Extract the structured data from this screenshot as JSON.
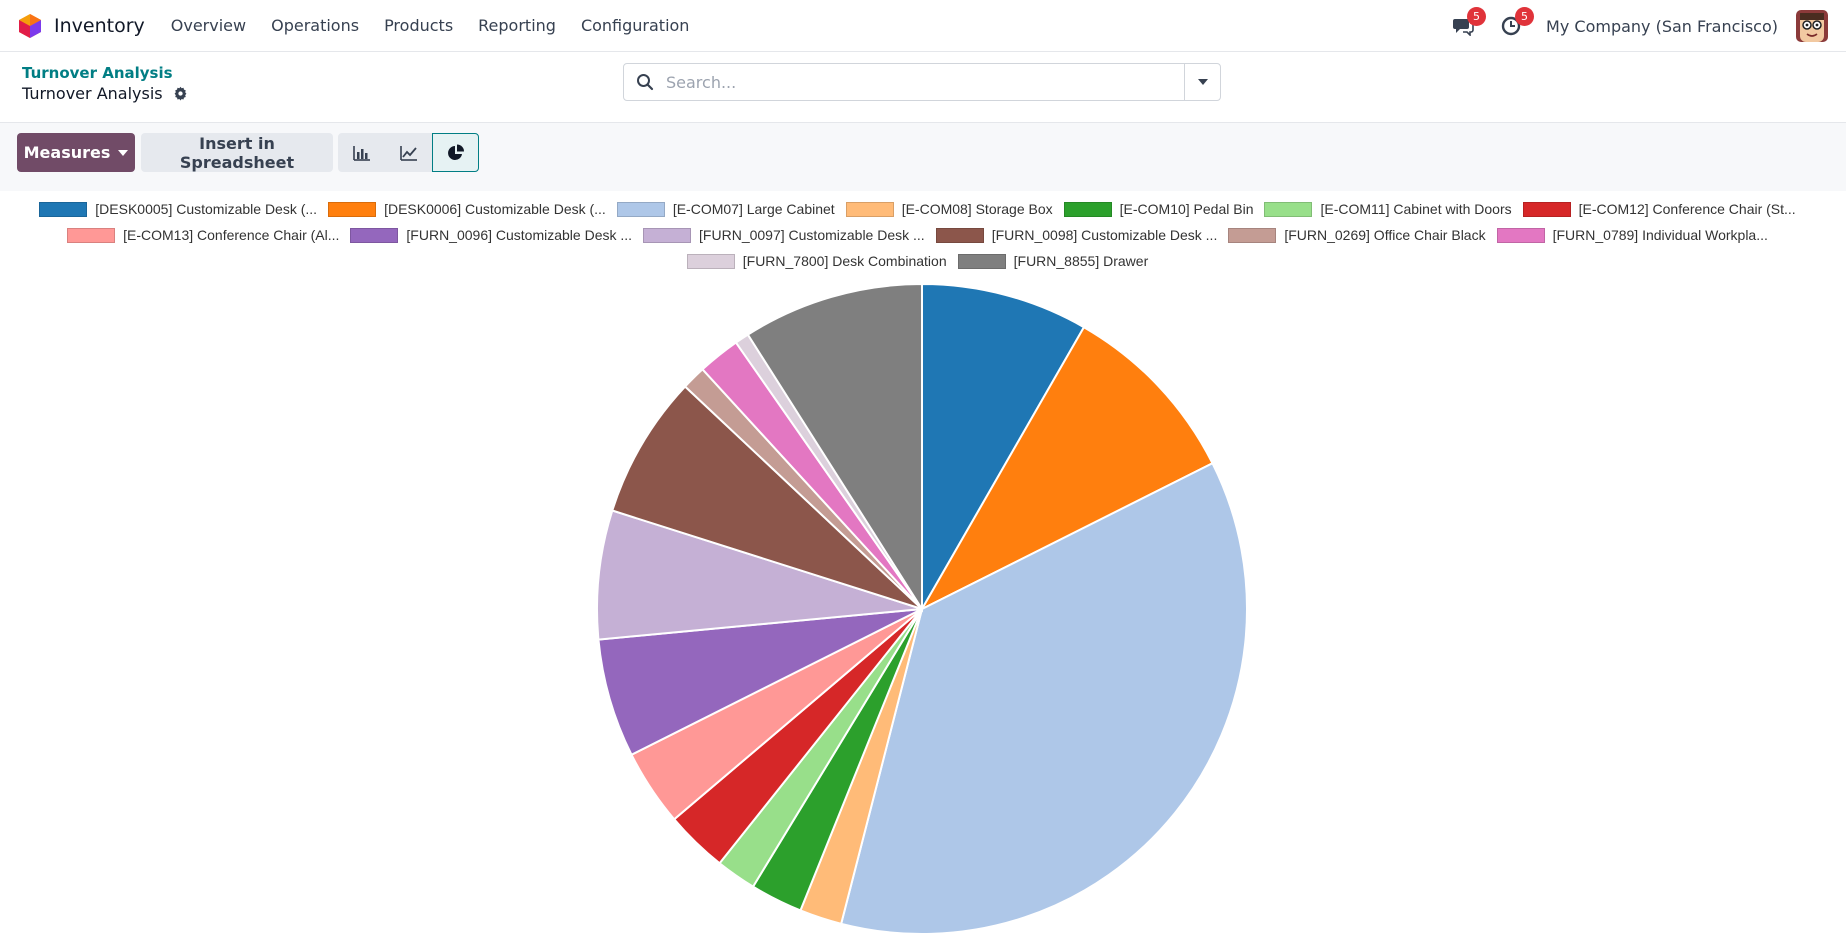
{
  "navbar": {
    "app_name": "Inventory",
    "menu": [
      "Overview",
      "Operations",
      "Products",
      "Reporting",
      "Configuration"
    ],
    "messages_count": "5",
    "activities_count": "5",
    "company": "My Company (San Francisco)"
  },
  "control": {
    "breadcrumb": "Turnover Analysis",
    "title": "Turnover Analysis",
    "search_placeholder": "Search..."
  },
  "toolbar": {
    "measures_label": "Measures",
    "spreadsheet_label": "Insert in Spreadsheet"
  },
  "colors": {
    "brand": "#714b67",
    "accent": "#017e84",
    "badge": "#e0333a"
  },
  "chart_data": {
    "type": "pie",
    "series": [
      {
        "label": "[DESK0005] Customizable Desk (...",
        "value": 8.3,
        "color": "#1f77b4"
      },
      {
        "label": "[DESK0006] Customizable Desk (...",
        "value": 9.3,
        "color": "#ff7f0e"
      },
      {
        "label": "[E-COM07] Large Cabinet",
        "value": 36.4,
        "color": "#aec7e8"
      },
      {
        "label": "[E-COM08] Storage Box",
        "value": 2.1,
        "color": "#ffbb78"
      },
      {
        "label": "[E-COM10] Pedal Bin",
        "value": 2.6,
        "color": "#2ca02c"
      },
      {
        "label": "[E-COM11] Cabinet with Doors",
        "value": 2.0,
        "color": "#98df8a"
      },
      {
        "label": "[E-COM12] Conference Chair (St...",
        "value": 3.1,
        "color": "#d62728"
      },
      {
        "label": "[E-COM13] Conference Chair (Al...",
        "value": 3.8,
        "color": "#ff9896"
      },
      {
        "label": "[FURN_0096] Customizable Desk ...",
        "value": 5.9,
        "color": "#9467bd"
      },
      {
        "label": "[FURN_0097] Customizable Desk ...",
        "value": 6.4,
        "color": "#c5b0d5"
      },
      {
        "label": "[FURN_0098] Customizable Desk ...",
        "value": 7.1,
        "color": "#8c564b"
      },
      {
        "label": "[FURN_0269] Office Chair Black",
        "value": 1.2,
        "color": "#c49c94"
      },
      {
        "label": "[FURN_0789] Individual Workpla...",
        "value": 2.1,
        "color": "#e377c2"
      },
      {
        "label": "[FURN_7800] Desk Combination",
        "value": 0.7,
        "color": "#dcd0dc"
      },
      {
        "label": "[FURN_8855] Drawer",
        "value": 9.0,
        "color": "#7f7f7f"
      }
    ],
    "legend_position": "top"
  }
}
